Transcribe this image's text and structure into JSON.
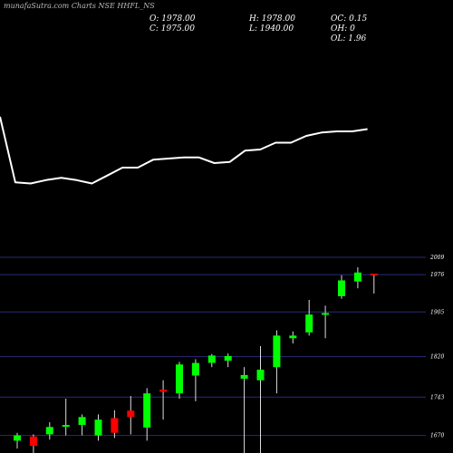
{
  "header": {
    "brand": "munafaSutra.com",
    "title": "Charts NSE HHFL_NS",
    "o": "O: 1978.00",
    "h": "H: 1978.00",
    "oc": "OC: 0.15",
    "c": "C: 1975.00",
    "l": "L: 1940.00",
    "oh": "OH: 0",
    "ol": "OL: 1.96"
  },
  "chart_data": [
    {
      "type": "line",
      "panel": "indicator",
      "x": [
        0,
        1,
        2,
        3,
        4,
        5,
        6,
        7,
        8,
        9,
        10,
        11,
        12,
        13,
        14,
        15,
        16,
        17,
        18,
        19,
        20,
        21,
        22,
        23,
        24
      ],
      "values": [
        73,
        15,
        14,
        17,
        19,
        17,
        14,
        21,
        28,
        28,
        35,
        36,
        37,
        37,
        32,
        33,
        43,
        44,
        50,
        50,
        56,
        59,
        60,
        60,
        62
      ],
      "ylim": [
        0,
        100
      ],
      "color": "#ffffff"
    },
    {
      "type": "candlestick",
      "panel": "price",
      "ylim": [
        1640,
        2009
      ],
      "yticks": [
        2009,
        1976,
        1905,
        1820,
        1743,
        1670
      ],
      "grid": true,
      "up_color": "#00ff00",
      "down_color": "#ff0000",
      "candles": [
        {
          "o": 1660,
          "h": 1675,
          "l": 1645,
          "c": 1670
        },
        {
          "o": 1668,
          "h": 1672,
          "l": 1620,
          "c": 1650
        },
        {
          "o": 1672,
          "h": 1695,
          "l": 1662,
          "c": 1686
        },
        {
          "o": 1688,
          "h": 1740,
          "l": 1670,
          "c": 1690
        },
        {
          "o": 1690,
          "h": 1710,
          "l": 1670,
          "c": 1705
        },
        {
          "o": 1670,
          "h": 1710,
          "l": 1660,
          "c": 1700
        },
        {
          "o": 1703,
          "h": 1718,
          "l": 1665,
          "c": 1675
        },
        {
          "o": 1717,
          "h": 1745,
          "l": 1672,
          "c": 1705
        },
        {
          "o": 1685,
          "h": 1760,
          "l": 1660,
          "c": 1750
        },
        {
          "o": 1757,
          "h": 1775,
          "l": 1700,
          "c": 1753
        },
        {
          "o": 1750,
          "h": 1810,
          "l": 1740,
          "c": 1805
        },
        {
          "o": 1784,
          "h": 1815,
          "l": 1735,
          "c": 1808
        },
        {
          "o": 1808,
          "h": 1825,
          "l": 1800,
          "c": 1822
        },
        {
          "o": 1812,
          "h": 1826,
          "l": 1800,
          "c": 1821
        },
        {
          "o": 1778,
          "h": 1800,
          "l": 1610,
          "c": 1785
        },
        {
          "o": 1775,
          "h": 1840,
          "l": 1620,
          "c": 1795
        },
        {
          "o": 1800,
          "h": 1870,
          "l": 1750,
          "c": 1860
        },
        {
          "o": 1855,
          "h": 1868,
          "l": 1845,
          "c": 1860
        },
        {
          "o": 1866,
          "h": 1928,
          "l": 1860,
          "c": 1900
        },
        {
          "o": 1900,
          "h": 1917,
          "l": 1855,
          "c": 1903
        },
        {
          "o": 1935,
          "h": 1975,
          "l": 1930,
          "c": 1965
        },
        {
          "o": 1963,
          "h": 1990,
          "l": 1950,
          "c": 1980
        },
        {
          "o": 1978,
          "h": 1978,
          "l": 1940,
          "c": 1975
        }
      ]
    }
  ]
}
